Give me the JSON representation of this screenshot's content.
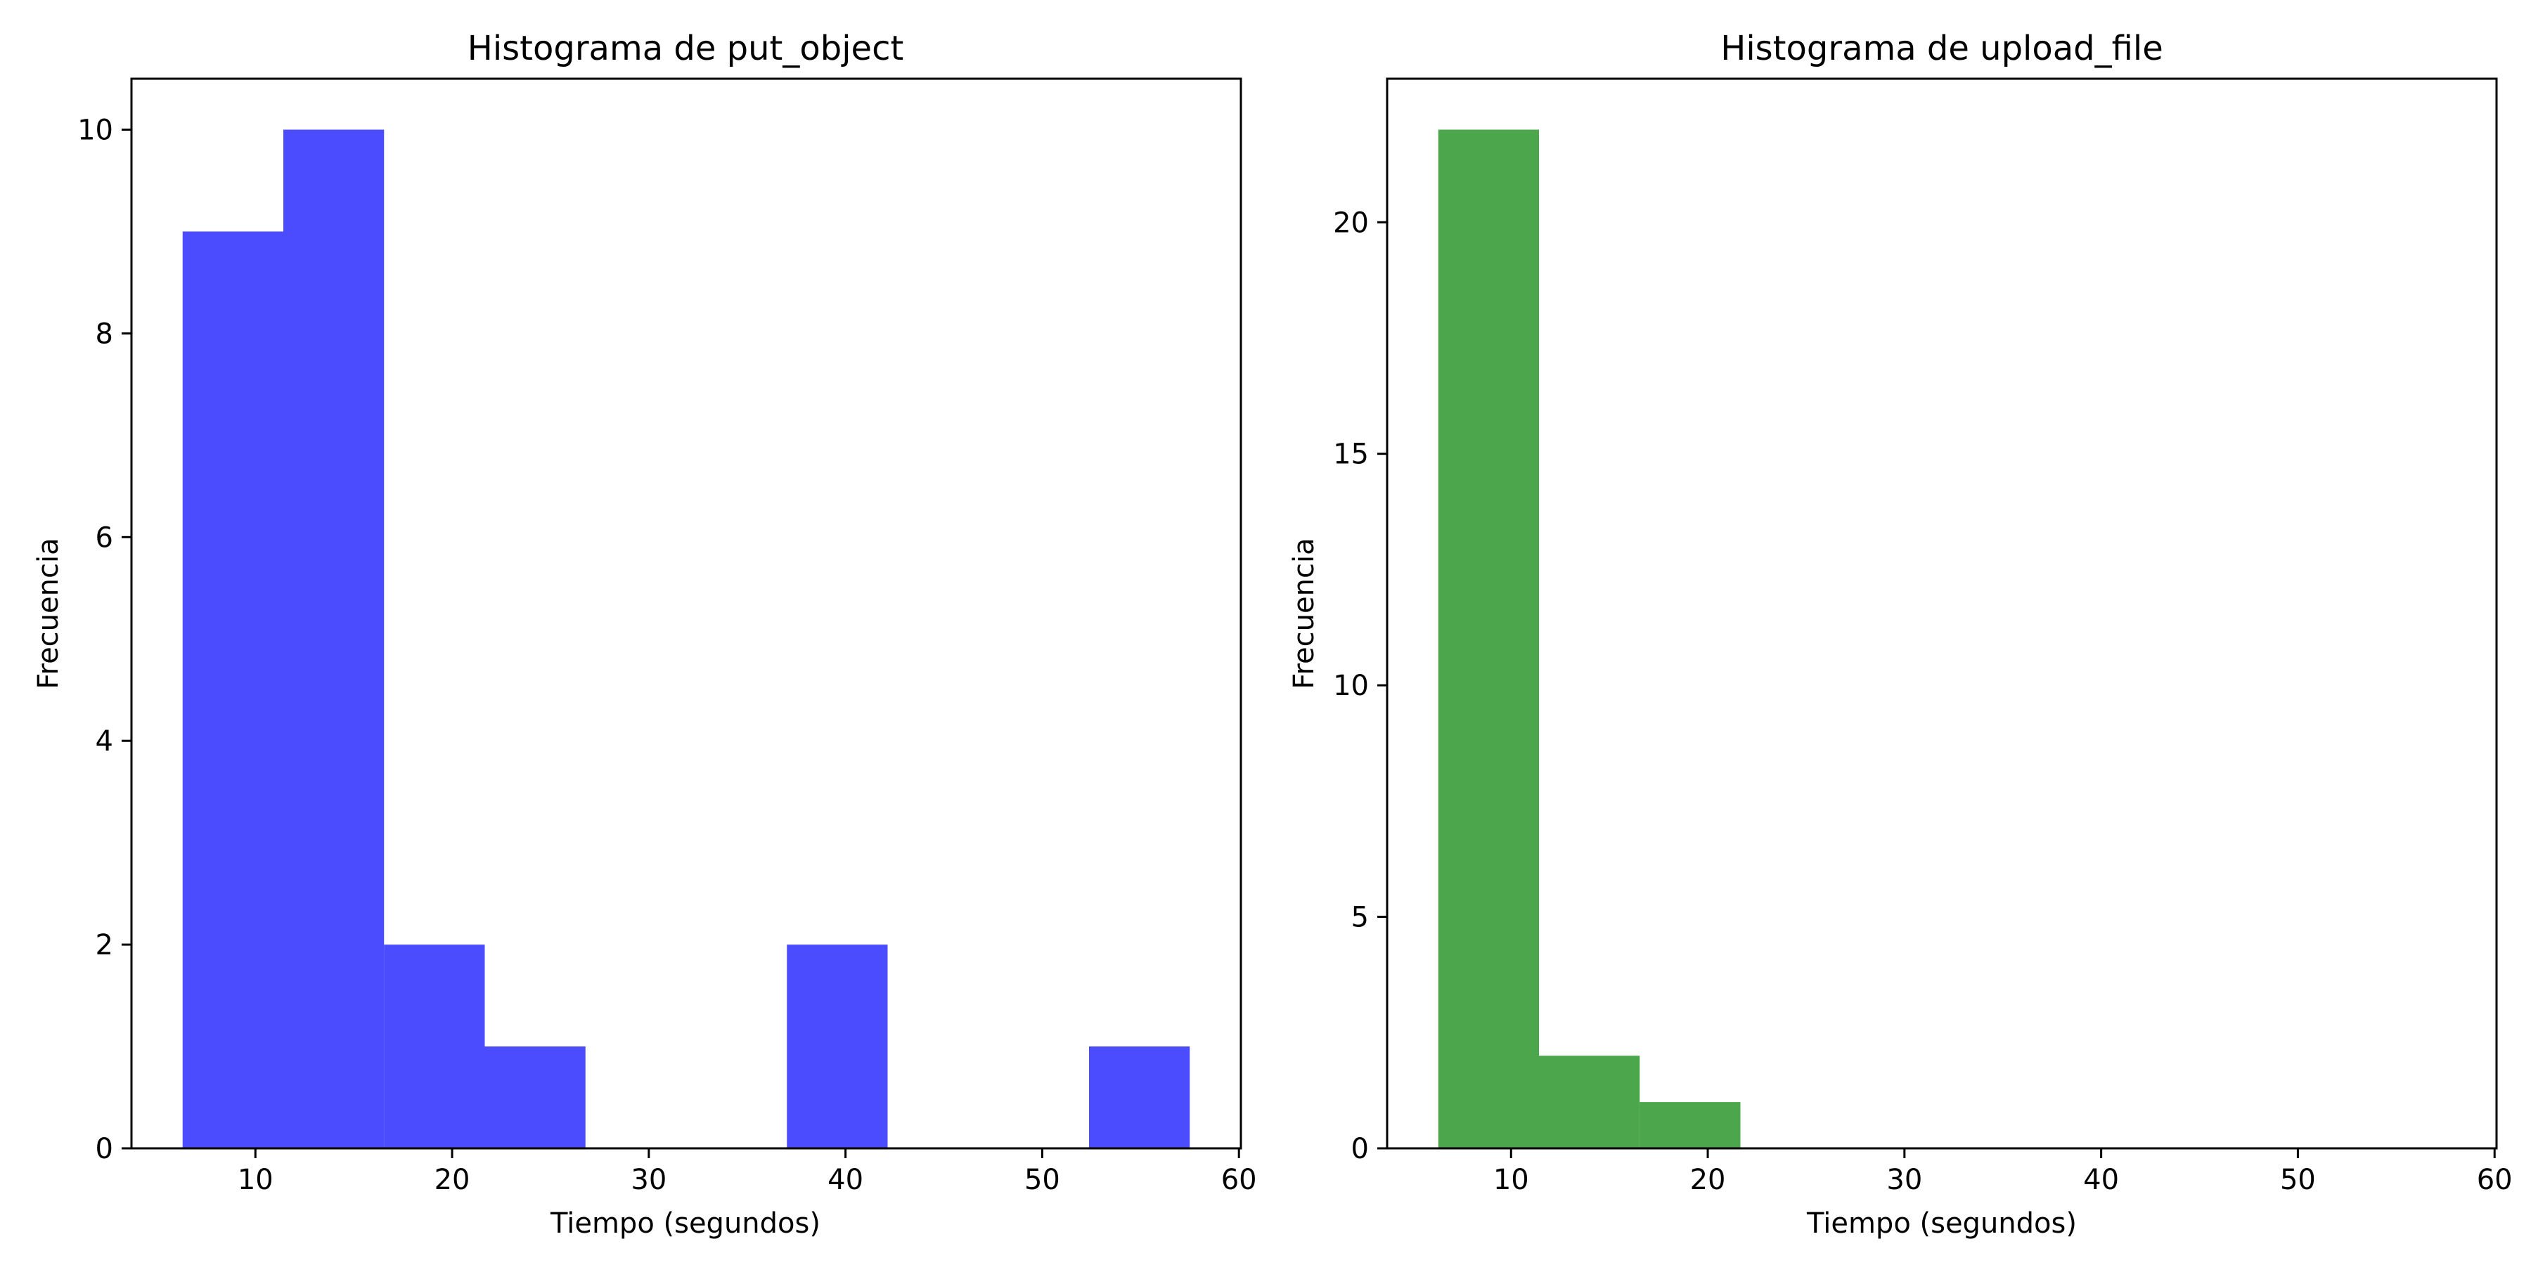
{
  "figure": {
    "background": "#ffffff"
  },
  "chart_data": [
    {
      "type": "bar",
      "subtype": "histogram",
      "title": "Histograma de put_object",
      "xlabel": "Tiempo (segundos)",
      "ylabel": "Frecuencia",
      "color": "#0000ff",
      "opacity": 0.7,
      "bin_edges": [
        6.3,
        11.42,
        16.54,
        21.66,
        26.78,
        31.9,
        37.02,
        42.14,
        47.26,
        52.38,
        57.5
      ],
      "counts": [
        9,
        10,
        2,
        1,
        0,
        0,
        2,
        0,
        0,
        1
      ],
      "xlim": [
        3.7,
        60.1
      ],
      "ylim": [
        0,
        10.5
      ],
      "xticks": [
        10,
        20,
        30,
        40,
        50,
        60
      ],
      "xtick_labels": [
        "10",
        "20",
        "30",
        "40",
        "50",
        "60"
      ],
      "yticks": [
        0,
        2,
        4,
        6,
        8,
        10
      ],
      "ytick_labels": [
        "0",
        "2",
        "4",
        "6",
        "8",
        "10"
      ],
      "grid": false,
      "legend": "none"
    },
    {
      "type": "bar",
      "subtype": "histogram",
      "title": "Histograma de upload_file",
      "xlabel": "Tiempo (segundos)",
      "ylabel": "Frecuencia",
      "color": "#008000",
      "opacity": 0.7,
      "bin_edges": [
        6.3,
        11.42,
        16.54,
        21.66
      ],
      "counts": [
        22,
        2,
        1
      ],
      "xlim": [
        3.7,
        60.1
      ],
      "ylim": [
        0,
        23.1
      ],
      "xticks": [
        10,
        20,
        30,
        40,
        50,
        60
      ],
      "xtick_labels": [
        "10",
        "20",
        "30",
        "40",
        "50",
        "60"
      ],
      "yticks": [
        0,
        5,
        10,
        15,
        20
      ],
      "ytick_labels": [
        "0",
        "5",
        "10",
        "15",
        "20"
      ],
      "grid": false,
      "legend": "none"
    }
  ]
}
